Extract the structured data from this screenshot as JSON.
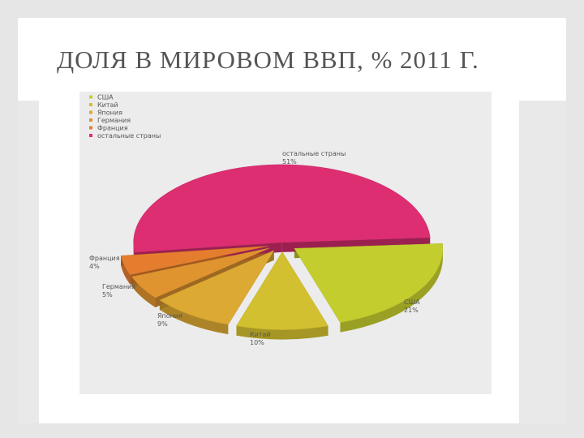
{
  "slide": {
    "title": "ДОЛЯ В МИРОВОМ ВВП, % 2011 Г."
  },
  "chart_data": {
    "type": "pie",
    "title": "",
    "legend_position": "top-left",
    "exploded": true,
    "three_d": true,
    "slices": [
      {
        "label": "США",
        "value": 21,
        "value_label": "21%",
        "color": "#c4cd2e"
      },
      {
        "label": "Китай",
        "value": 10,
        "value_label": "10%",
        "color": "#d3c030"
      },
      {
        "label": "Япония",
        "value": 9,
        "value_label": "9%",
        "color": "#dca932"
      },
      {
        "label": "Германия",
        "value": 5,
        "value_label": "5%",
        "color": "#e0942f"
      },
      {
        "label": "Франция",
        "value": 4,
        "value_label": "4%",
        "color": "#e47e2e"
      },
      {
        "label": "остальные страны",
        "value": 51,
        "value_label": "51%",
        "color": "#dd2e72"
      }
    ]
  }
}
